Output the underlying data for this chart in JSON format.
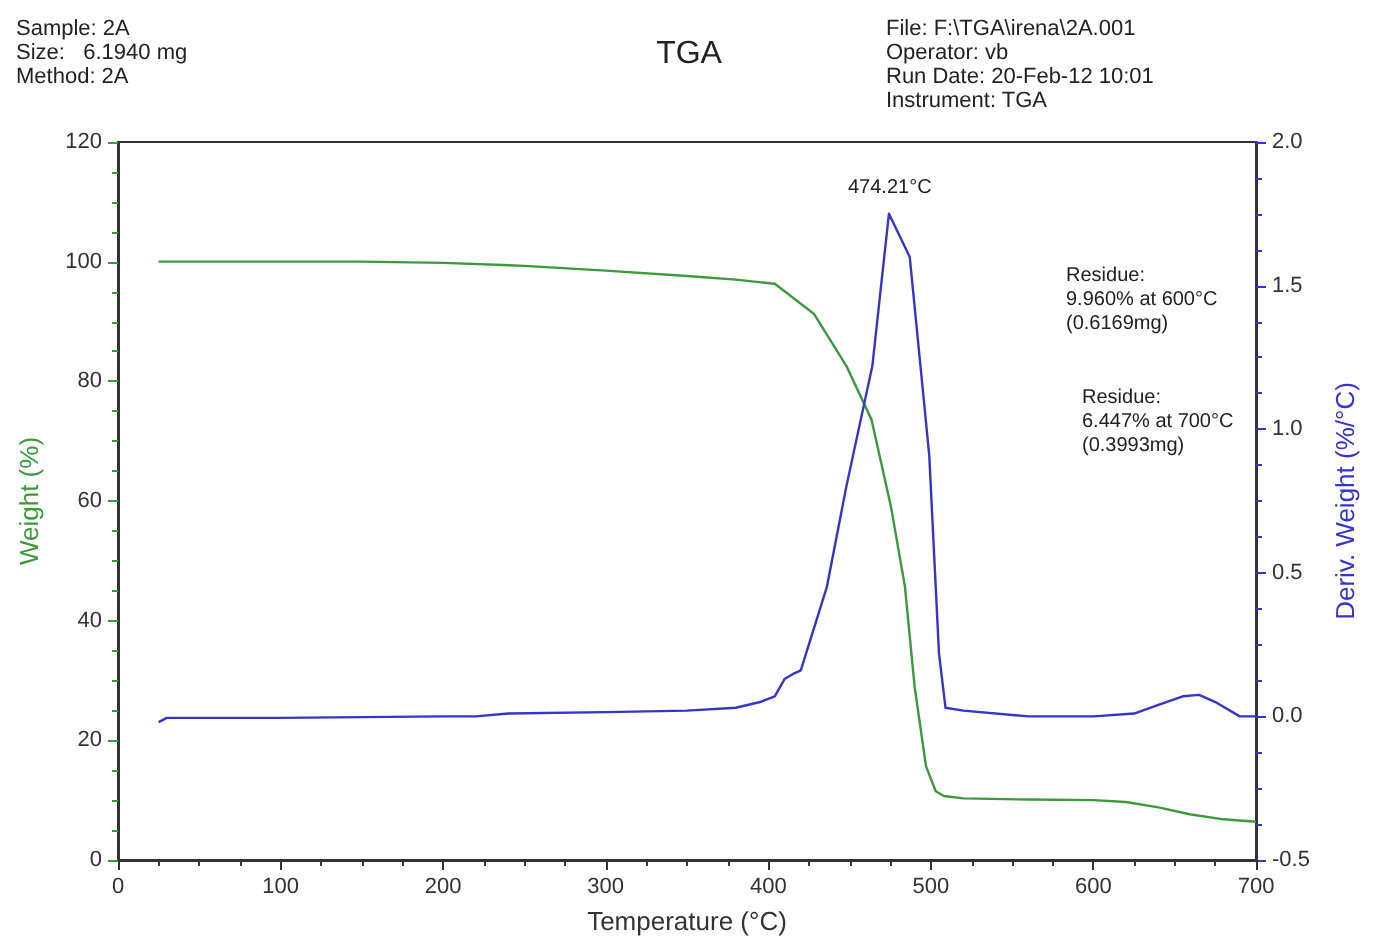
{
  "chart_data": {
    "type": "line",
    "title": "TGA",
    "xlabel": "Temperature (°C)",
    "ylabel": "Weight (%)",
    "y2label": "Deriv. Weight (%/°C)",
    "xlim": [
      0,
      700
    ],
    "xticks": [
      0,
      100,
      200,
      300,
      400,
      500,
      600,
      700
    ],
    "ylim": [
      0,
      120
    ],
    "yticks": [
      0,
      20,
      40,
      60,
      80,
      100,
      120
    ],
    "y2lim": [
      -0.5,
      2.0
    ],
    "y2ticks": [
      -0.5,
      {
        "value": 0,
        "label": "0.0"
      },
      0.5,
      {
        "value": 1,
        "label": "1.0"
      },
      1.5,
      {
        "value": 2,
        "label": "2.0"
      }
    ],
    "grid": false,
    "marker": "none",
    "line_style": "solid",
    "annotations": [
      "Sample: 2A",
      "Size:   6.1940 mg",
      "Method: 2A",
      "File: F:\\TGA\\irena\\2A.001",
      "Operator: vb",
      "Run Date: 20-Feb-12 10:01",
      "Instrument: TGA",
      "474.21°C",
      "Residue:\n9.960% at 600°C\n(0.6169mg)",
      "Residue:\n6.447% at 700°C\n(0.3993mg)"
    ],
    "series": [
      {
        "color": "#3c9a3c",
        "x": [
          25,
          100,
          150,
          200,
          250,
          300,
          350,
          380,
          404,
          428,
          448,
          463.5,
          475.5,
          484,
          490,
          497,
          503,
          508,
          520,
          560,
          600,
          620,
          640,
          660,
          680,
          700
        ],
        "values": [
          100,
          100,
          100,
          99.8,
          99.3,
          98.5,
          97.6,
          97,
          96.3,
          91.3,
          82.6,
          73.6,
          59,
          45.8,
          29,
          15.7,
          11.5,
          10.7,
          10.3,
          10.1,
          10,
          9.7,
          8.8,
          7.6,
          6.8,
          6.4
        ]
      },
      {
        "color": "#3535c8",
        "axis": "y2",
        "x": [
          25,
          30,
          100,
          200,
          220,
          240,
          300,
          350,
          380,
          395,
          404,
          410,
          416,
          420,
          436,
          448,
          464,
          474.21,
          487,
          499,
          505,
          509,
          520,
          560,
          600,
          625,
          640,
          655,
          665,
          675,
          690,
          700
        ],
        "values": [
          -0.02,
          -0.005,
          -0.005,
          0.0,
          0.0,
          0.01,
          0.015,
          0.02,
          0.03,
          0.05,
          0.07,
          0.13,
          0.15,
          0.16,
          0.45,
          0.8,
          1.22,
          1.75,
          1.6,
          0.91,
          0.22,
          0.03,
          0.02,
          0.0,
          0.0,
          0.01,
          0.04,
          0.07,
          0.075,
          0.05,
          0.0,
          0.0
        ]
      }
    ]
  }
}
